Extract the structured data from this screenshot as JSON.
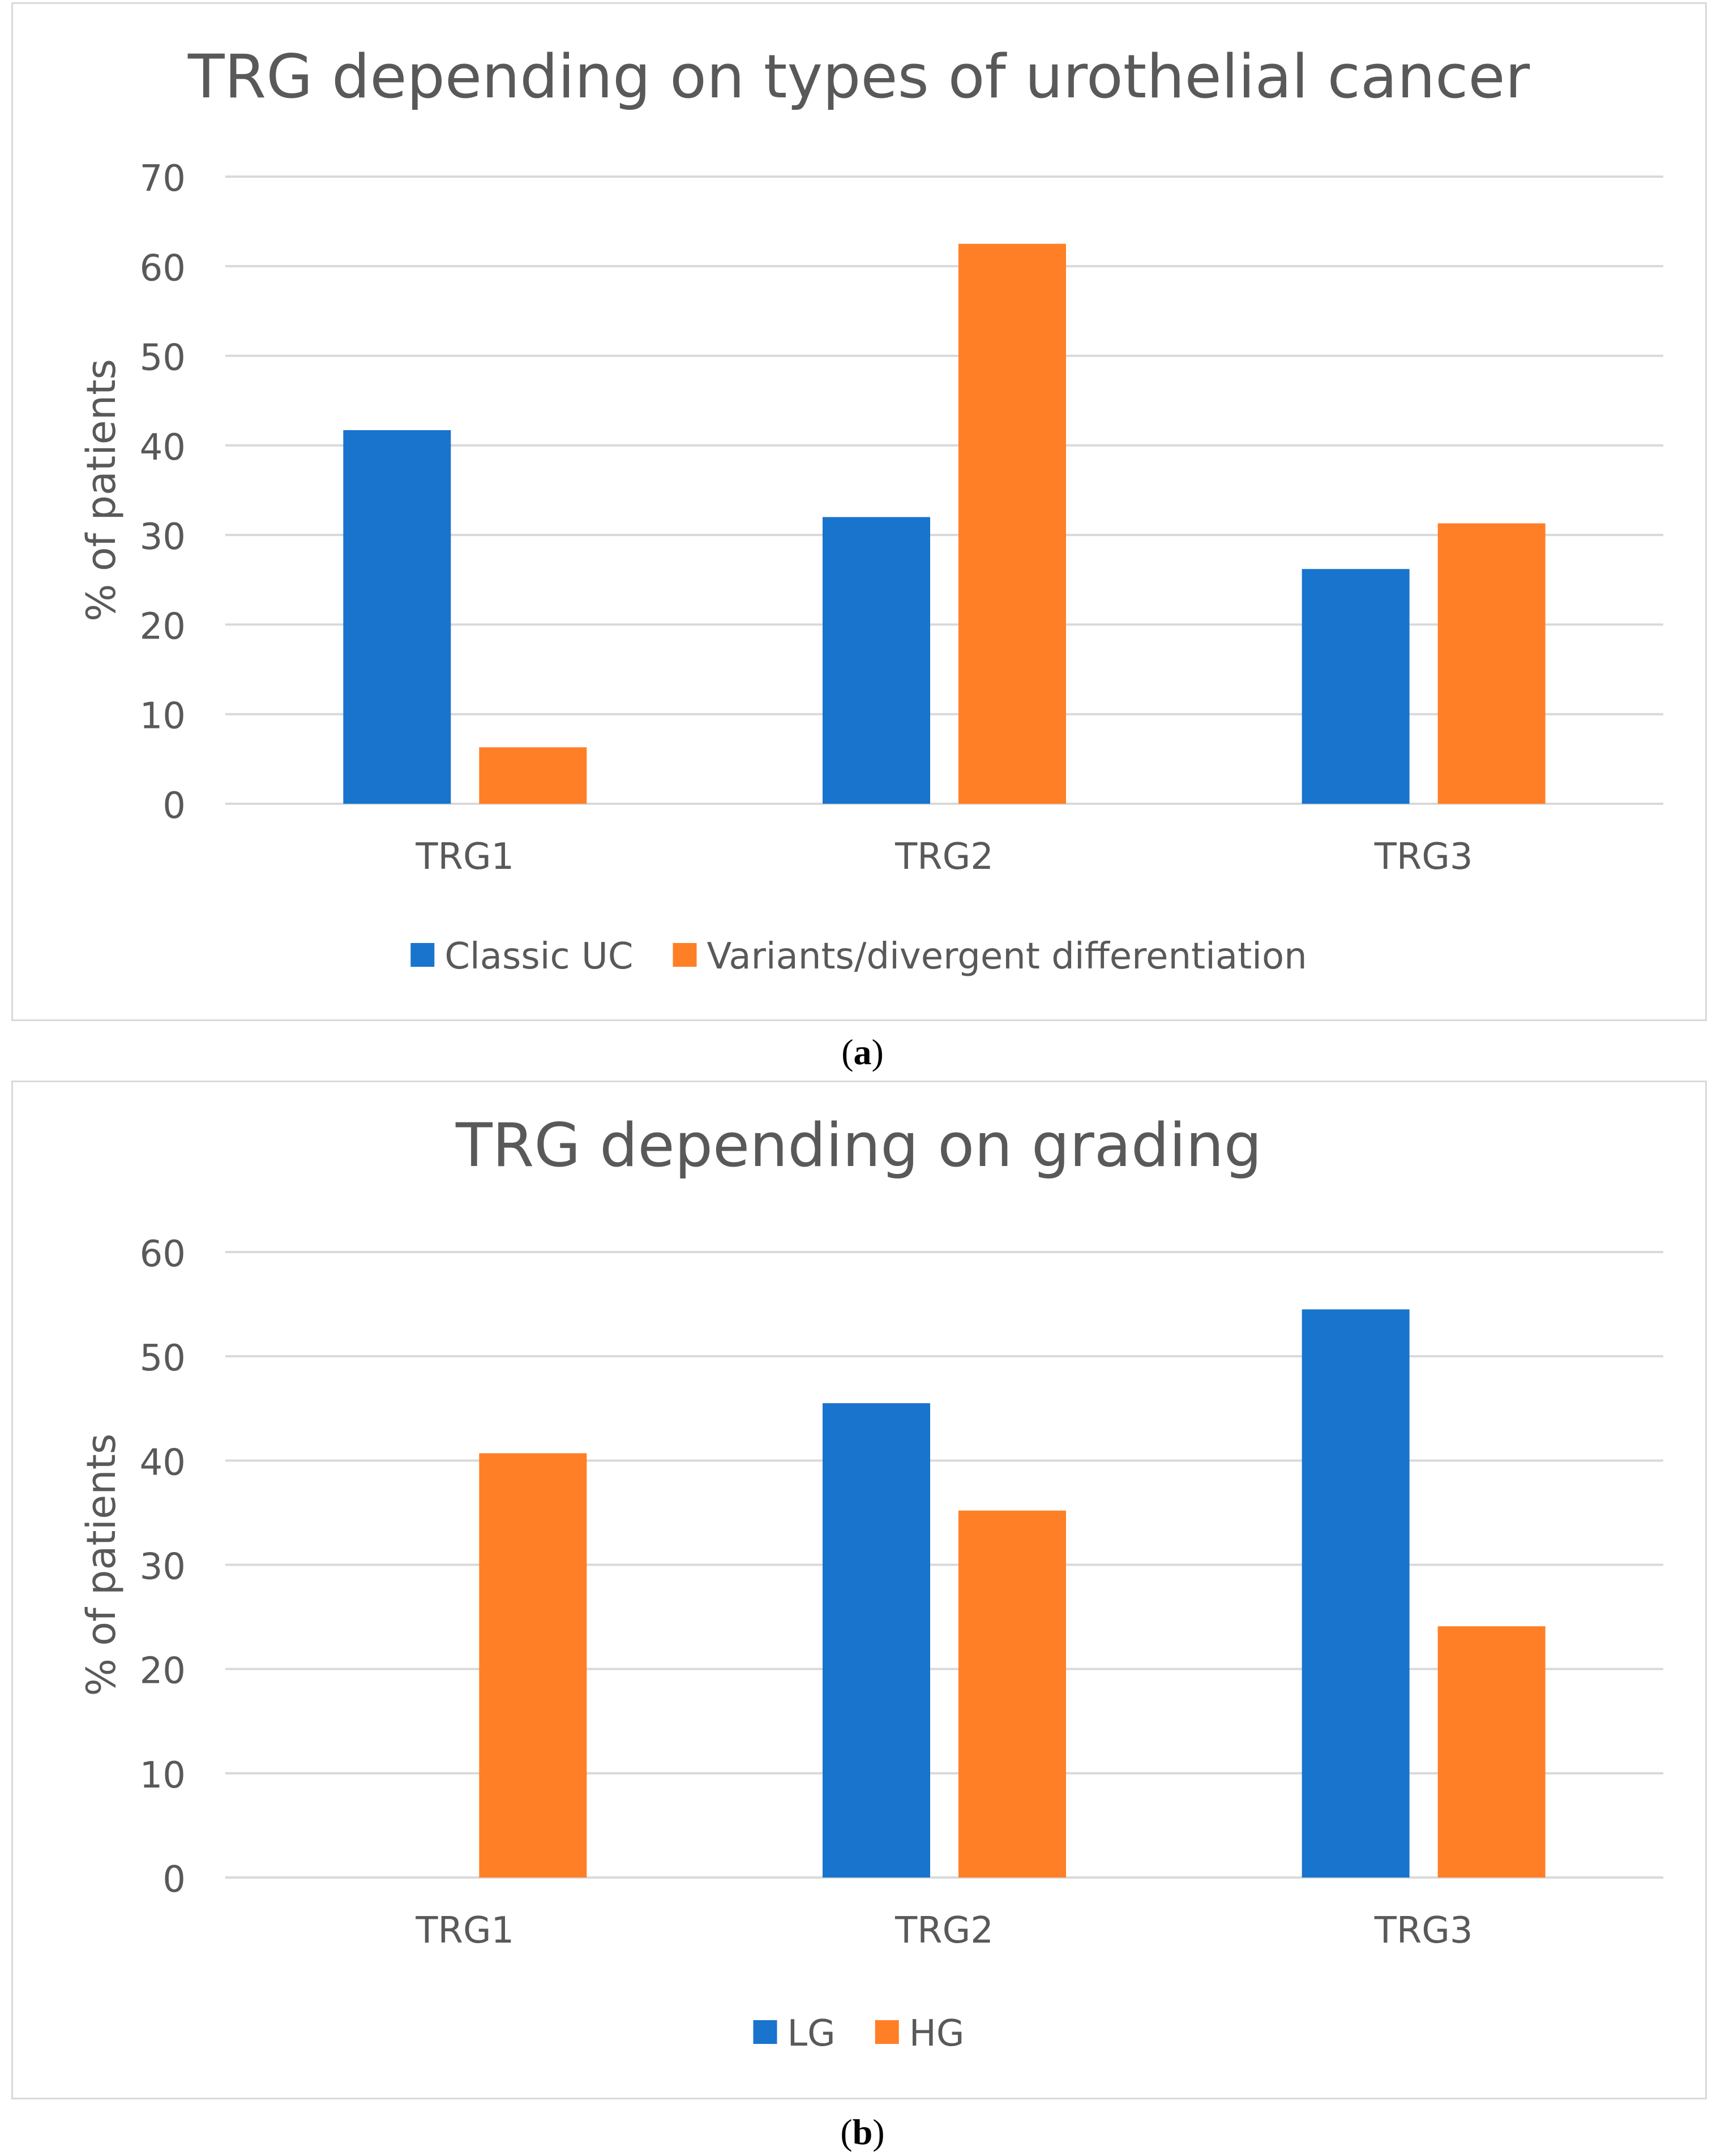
{
  "chart_data": [
    {
      "type": "bar",
      "title": "TRG depending on types of urothelial cancer",
      "xlabel": "",
      "ylabel": "% of patients",
      "categories": [
        "TRG1",
        "TRG2",
        "TRG3"
      ],
      "ylim": [
        0,
        70
      ],
      "yticks": [
        0,
        10,
        20,
        30,
        40,
        50,
        60,
        70
      ],
      "grid": true,
      "legend_position": "bottom",
      "series": [
        {
          "name": "Classic UC",
          "color": "#1874CD",
          "values": [
            41.7,
            32.0,
            26.2
          ]
        },
        {
          "name": "Variants/divergent differentiation",
          "color": "#FF7F27",
          "values": [
            6.3,
            62.5,
            31.3
          ]
        }
      ]
    },
    {
      "type": "bar",
      "title": "TRG depending on grading",
      "xlabel": "",
      "ylabel": "% of patients",
      "categories": [
        "TRG1",
        "TRG2",
        "TRG3"
      ],
      "ylim": [
        0,
        60
      ],
      "yticks": [
        0,
        10,
        20,
        30,
        40,
        50,
        60
      ],
      "grid": true,
      "legend_position": "bottom",
      "series": [
        {
          "name": "LG",
          "color": "#1874CD",
          "values": [
            0,
            45.5,
            54.5
          ]
        },
        {
          "name": "HG",
          "color": "#FF7F27",
          "values": [
            40.7,
            35.2,
            24.1
          ]
        }
      ]
    }
  ],
  "captions": {
    "a": {
      "open": "(",
      "letter": "a",
      "close": ")"
    },
    "b": {
      "open": "(",
      "letter": "b",
      "close": ")"
    }
  }
}
